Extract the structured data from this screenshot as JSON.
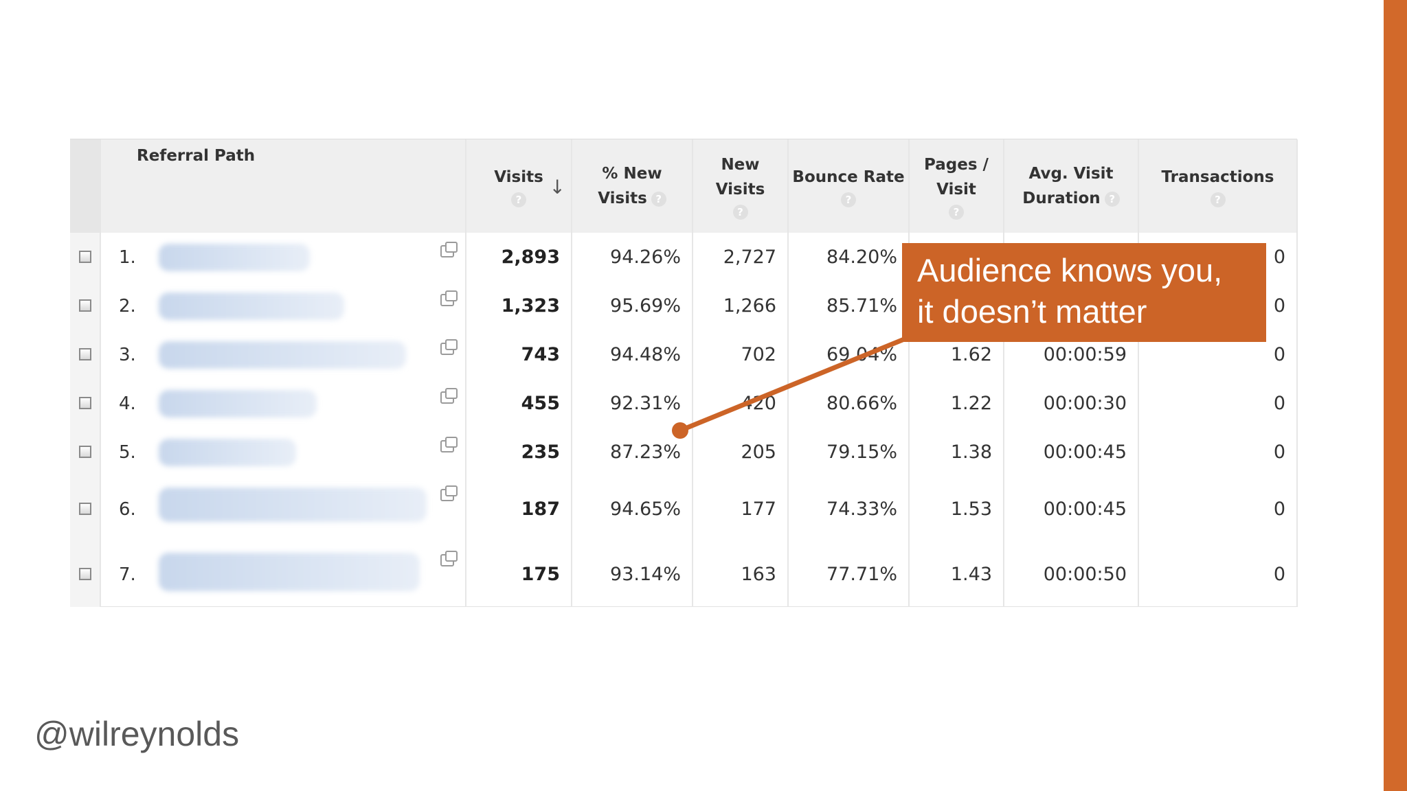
{
  "slide": {
    "handle": "@wilreynolds",
    "callout_lines": [
      "Audience knows you,",
      "it doesn’t matter"
    ],
    "accent_color": "#d2692a"
  },
  "report": {
    "columns": {
      "path": "Referral Path",
      "visits": "Visits",
      "pct_new_a": "% New",
      "pct_new_b": "Visits",
      "new_a": "New",
      "new_b": "Visits",
      "bounce": "Bounce Rate",
      "pages_a": "Pages /",
      "pages_b": "Visit",
      "dur_a": "Avg. Visit",
      "dur_b": "Duration",
      "trans": "Transactions"
    },
    "help_glyph": "?",
    "sort_glyph": "↓",
    "rows": [
      {
        "rank": "1.",
        "visits": "2,893",
        "pct_new": "94.26%",
        "new_visits": "2,727",
        "bounce": "84.20%",
        "pages": "",
        "duration": "",
        "transactions": "0"
      },
      {
        "rank": "2.",
        "visits": "1,323",
        "pct_new": "95.69%",
        "new_visits": "1,266",
        "bounce": "85.71%",
        "pages": "",
        "duration": "",
        "transactions": "0"
      },
      {
        "rank": "3.",
        "visits": "743",
        "pct_new": "94.48%",
        "new_visits": "702",
        "bounce": "69.04%",
        "pages": "1.62",
        "duration": "00:00:59",
        "transactions": "0"
      },
      {
        "rank": "4.",
        "visits": "455",
        "pct_new": "92.31%",
        "new_visits": "420",
        "bounce": "80.66%",
        "pages": "1.22",
        "duration": "00:00:30",
        "transactions": "0"
      },
      {
        "rank": "5.",
        "visits": "235",
        "pct_new": "87.23%",
        "new_visits": "205",
        "bounce": "79.15%",
        "pages": "1.38",
        "duration": "00:00:45",
        "transactions": "0"
      },
      {
        "rank": "6.",
        "visits": "187",
        "pct_new": "94.65%",
        "new_visits": "177",
        "bounce": "74.33%",
        "pages": "1.53",
        "duration": "00:00:45",
        "transactions": "0"
      },
      {
        "rank": "7.",
        "visits": "175",
        "pct_new": "93.14%",
        "new_visits": "163",
        "bounce": "77.71%",
        "pages": "1.43",
        "duration": "00:00:50",
        "transactions": "0"
      }
    ]
  }
}
